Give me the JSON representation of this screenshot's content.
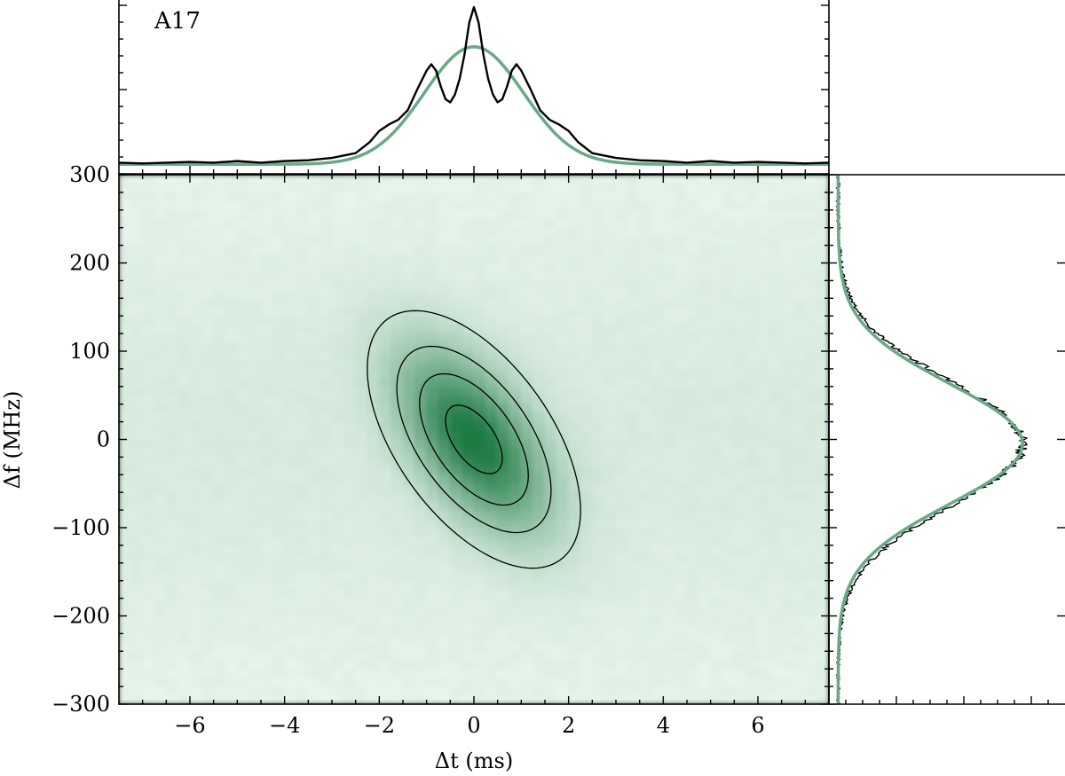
{
  "chart_data": {
    "type": "heatmap",
    "panel_label": "A17",
    "xlabel": "Δt (ms)",
    "ylabel": "Δf (MHz)",
    "xlim": [
      -7.5,
      7.5
    ],
    "ylim": [
      -300,
      300
    ],
    "x_ticks": [
      -6,
      -4,
      -2,
      0,
      2,
      4,
      6
    ],
    "x_tick_labels": [
      "−6",
      "−4",
      "−2",
      "0",
      "2",
      "4",
      "6"
    ],
    "y_ticks": [
      -300,
      -200,
      -100,
      0,
      100,
      200,
      300
    ],
    "y_tick_labels": [
      "−300",
      "−200",
      "−100",
      "0",
      "100",
      "200",
      "300"
    ],
    "colors": {
      "map_low": "#eaf6ee",
      "map_high": "#1d7a43",
      "fit_line": "#6aa985",
      "data_line": "#000000",
      "contour": "#000000"
    },
    "two_d_fit": {
      "center_dt_ms": 0.0,
      "center_df_mhz": 0.0,
      "contour_levels_rel": [
        0.1,
        0.3,
        0.55,
        0.85
      ],
      "sigma_dt_ms": 1.05,
      "sigma_df_mhz": 68,
      "correlation": -0.55
    },
    "time_profile": {
      "x_ms": [
        -7.5,
        -7.0,
        -6.5,
        -6.0,
        -5.5,
        -5.0,
        -4.5,
        -4.0,
        -3.5,
        -3.0,
        -2.5,
        -2.2,
        -2.0,
        -1.8,
        -1.6,
        -1.4,
        -1.2,
        -1.0,
        -0.9,
        -0.8,
        -0.7,
        -0.6,
        -0.5,
        -0.4,
        -0.3,
        -0.2,
        -0.1,
        0.0,
        0.1,
        0.2,
        0.3,
        0.4,
        0.5,
        0.6,
        0.7,
        0.8,
        0.9,
        1.0,
        1.2,
        1.4,
        1.6,
        1.8,
        2.0,
        2.2,
        2.5,
        3.0,
        3.5,
        4.0,
        4.5,
        5.0,
        5.5,
        6.0,
        6.5,
        7.0,
        7.5
      ],
      "data": [
        0.02,
        0.015,
        0.02,
        0.025,
        0.02,
        0.03,
        0.02,
        0.03,
        0.035,
        0.05,
        0.08,
        0.15,
        0.22,
        0.26,
        0.29,
        0.35,
        0.48,
        0.6,
        0.64,
        0.6,
        0.5,
        0.42,
        0.4,
        0.45,
        0.55,
        0.7,
        0.9,
        1.0,
        0.9,
        0.7,
        0.55,
        0.45,
        0.4,
        0.42,
        0.5,
        0.6,
        0.64,
        0.6,
        0.48,
        0.35,
        0.29,
        0.26,
        0.22,
        0.15,
        0.08,
        0.05,
        0.035,
        0.03,
        0.02,
        0.03,
        0.02,
        0.025,
        0.02,
        0.015,
        0.02
      ],
      "fit": {
        "amplitude": 0.74,
        "center_ms": 0.0,
        "sigma_ms": 1.05,
        "baseline": 0.01
      }
    },
    "frequency_profile": {
      "fit": {
        "amplitude": 0.88,
        "center_mhz": -5,
        "sigma_mhz": 68,
        "baseline": 0.01
      }
    }
  }
}
